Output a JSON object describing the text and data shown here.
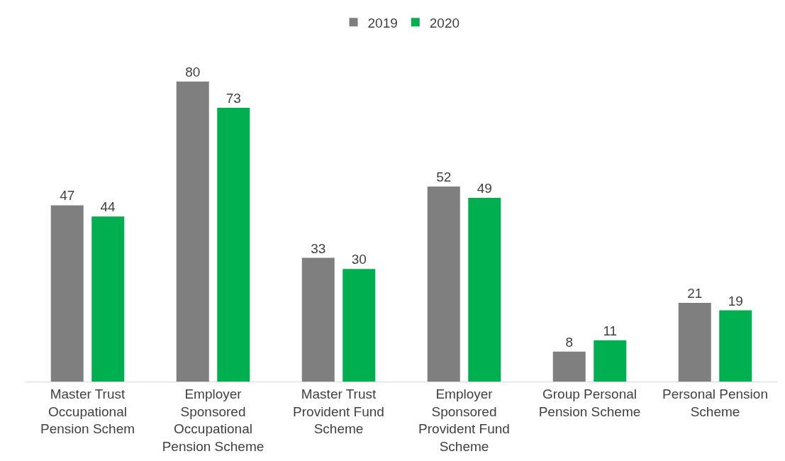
{
  "chart_data": {
    "type": "bar",
    "categories": [
      "Master Trust Occupational Pension Schem",
      "Employer Sponsored Occupational Pension Scheme",
      "Master Trust Provident Fund Scheme",
      "Employer Sponsored Provident Fund Scheme",
      "Group Personal Pension Scheme",
      "Personal Pension Scheme"
    ],
    "series": [
      {
        "name": "2019",
        "color": "#7f7f7f",
        "values": [
          47,
          80,
          33,
          52,
          8,
          21
        ]
      },
      {
        "name": "2020",
        "color": "#00b050",
        "values": [
          44,
          73,
          30,
          49,
          11,
          19
        ]
      }
    ],
    "data_labels": true,
    "legend": "top"
  }
}
